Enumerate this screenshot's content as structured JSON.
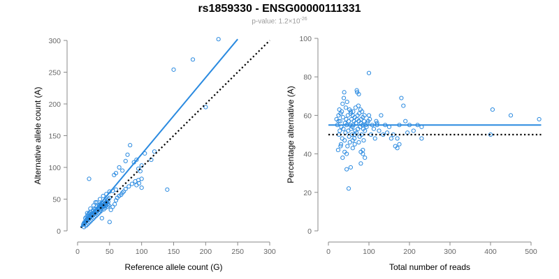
{
  "figure": {
    "title": "rs1859330 - ENSG00000111331",
    "subtitle_prefix": "p-value: 1.2×10",
    "subtitle_exponent": "-26"
  },
  "colors": {
    "points": "#2a8ae0",
    "fit_line": "#2a8ae0",
    "reference_line": "#000000",
    "axis": "#888888"
  },
  "chart_data": [
    {
      "type": "scatter",
      "title": "",
      "xlabel": "Reference allele count (G)",
      "ylabel": "Alternative allele count (A)",
      "xlim": [
        0,
        300
      ],
      "ylim": [
        0,
        300
      ],
      "xticks": [
        0,
        50,
        100,
        150,
        200,
        250,
        300
      ],
      "yticks": [
        0,
        50,
        100,
        150,
        200,
        250,
        300
      ],
      "grid": false,
      "fit_line": {
        "x": [
          5,
          250
        ],
        "y": [
          6,
          302
        ]
      },
      "reference_line": {
        "x": [
          5,
          300
        ],
        "y": [
          5,
          300
        ]
      },
      "points": {
        "x": [
          9,
          10,
          11,
          12,
          13,
          14,
          15,
          16,
          17,
          18,
          19,
          20,
          21,
          22,
          23,
          24,
          25,
          26,
          27,
          28,
          29,
          30,
          31,
          32,
          33,
          34,
          35,
          36,
          37,
          38,
          39,
          40,
          41,
          42,
          43,
          44,
          45,
          46,
          47,
          48,
          12,
          14,
          16,
          18,
          20,
          22,
          24,
          26,
          28,
          30,
          32,
          34,
          36,
          38,
          40,
          42,
          44,
          46,
          48,
          50,
          10,
          13,
          15,
          17,
          19,
          21,
          23,
          25,
          27,
          29,
          31,
          33,
          35,
          37,
          41,
          43,
          47,
          49,
          15,
          20,
          25,
          30,
          35,
          40,
          45,
          50,
          55,
          60,
          18,
          28,
          38,
          52,
          55,
          58,
          60,
          62,
          65,
          68,
          70,
          72,
          75,
          80,
          85,
          90,
          95,
          100,
          57,
          60,
          65,
          70,
          75,
          78,
          82,
          88,
          92,
          95,
          98,
          100,
          105,
          115,
          120,
          18,
          50,
          140,
          150,
          180,
          200,
          220,
          100,
          96,
          92
        ],
        "y": [
          10,
          12,
          14,
          13,
          15,
          18,
          17,
          20,
          19,
          22,
          23,
          21,
          25,
          24,
          27,
          26,
          28,
          29,
          27,
          31,
          30,
          33,
          32,
          35,
          34,
          36,
          33,
          38,
          37,
          40,
          39,
          41,
          38,
          42,
          43,
          40,
          44,
          45,
          42,
          46,
          20,
          22,
          25,
          27,
          30,
          26,
          32,
          35,
          34,
          38,
          36,
          40,
          42,
          44,
          39,
          47,
          45,
          48,
          50,
          52,
          6,
          8,
          10,
          12,
          14,
          16,
          18,
          20,
          22,
          24,
          26,
          28,
          30,
          32,
          34,
          36,
          38,
          40,
          28,
          35,
          40,
          45,
          50,
          55,
          58,
          62,
          63,
          65,
          28,
          45,
          20,
          33,
          38,
          42,
          48,
          52,
          55,
          57,
          60,
          62,
          66,
          70,
          74,
          78,
          80,
          82,
          88,
          91,
          100,
          95,
          110,
          120,
          135,
          108,
          112,
          98,
          94,
          103,
          122,
          112,
          125,
          82,
          14,
          65,
          254,
          270,
          195,
          302,
          68,
          75,
          72
        ]
      }
    },
    {
      "type": "scatter",
      "title": "",
      "xlabel": "Total number of reads",
      "ylabel": "Percentage alternative (A)",
      "xlim": [
        0,
        500
      ],
      "ylim": [
        0,
        100
      ],
      "xticks": [
        0,
        100,
        200,
        300,
        400,
        500
      ],
      "yticks": [
        0,
        20,
        40,
        60,
        80,
        100
      ],
      "grid": false,
      "fit_line": {
        "x": [
          0,
          525
        ],
        "y": [
          55,
          55
        ]
      },
      "reference_line": {
        "x": [
          0,
          525
        ],
        "y": [
          50,
          50
        ]
      },
      "points": {
        "x": [
          20,
          22,
          24,
          25,
          26,
          27,
          28,
          29,
          30,
          31,
          32,
          33,
          34,
          35,
          36,
          37,
          38,
          39,
          40,
          41,
          42,
          43,
          44,
          45,
          46,
          47,
          48,
          49,
          50,
          51,
          52,
          53,
          54,
          55,
          56,
          57,
          58,
          59,
          60,
          61,
          62,
          63,
          64,
          65,
          66,
          67,
          68,
          69,
          70,
          71,
          72,
          73,
          74,
          75,
          76,
          77,
          78,
          79,
          80,
          81,
          82,
          83,
          84,
          85,
          86,
          87,
          88,
          89,
          90,
          92,
          94,
          96,
          98,
          100,
          102,
          105,
          108,
          112,
          115,
          118,
          120,
          125,
          130,
          135,
          140,
          145,
          150,
          155,
          160,
          165,
          170,
          175,
          180,
          185,
          190,
          195,
          200,
          210,
          220,
          230,
          35,
          40,
          45,
          50,
          55,
          60,
          65,
          70,
          75,
          80,
          85,
          90,
          25,
          30,
          45,
          55,
          60,
          65,
          75,
          85,
          100,
          230,
          400,
          405,
          450,
          520,
          170,
          175,
          120,
          80
        ],
        "y": [
          58,
          55,
          42,
          60,
          50,
          63,
          52,
          57,
          61,
          45,
          54,
          62,
          48,
          66,
          59,
          53,
          69,
          72,
          47,
          56,
          51,
          64,
          58,
          55,
          67,
          44,
          60,
          52,
          57,
          49,
          63,
          46,
          55,
          61,
          53,
          58,
          50,
          54,
          60,
          62,
          55,
          57,
          48,
          59,
          52,
          64,
          56,
          51,
          58,
          72,
          60,
          53,
          65,
          57,
          61,
          49,
          54,
          63,
          56,
          58,
          50,
          62,
          55,
          59,
          53,
          47,
          57,
          60,
          52,
          55,
          54,
          56,
          57,
          82,
          58,
          50,
          55,
          53,
          48,
          57,
          55,
          52,
          60,
          50,
          55,
          51,
          54,
          48,
          50,
          44,
          43,
          55,
          69,
          65,
          57,
          51,
          55,
          52,
          55,
          48,
          38,
          41,
          40,
          22,
          33,
          43,
          45,
          73,
          71,
          35,
          40,
          38,
          57,
          44,
          32,
          62,
          47,
          50,
          46,
          42,
          60,
          54,
          50,
          63,
          60,
          58,
          48,
          45,
          56,
          41
        ]
      }
    }
  ]
}
